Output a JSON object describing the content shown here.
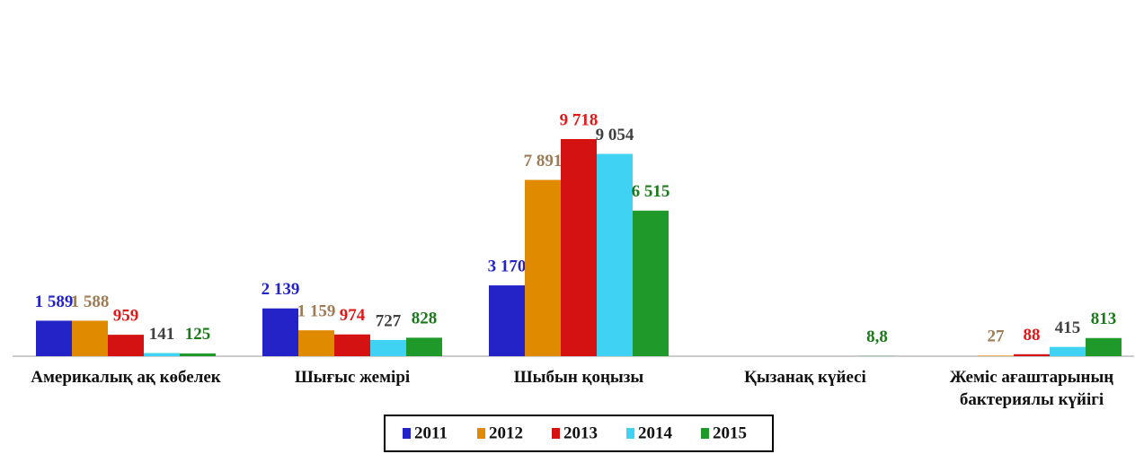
{
  "chart_data": {
    "type": "bar",
    "categories": [
      "Америкалық ақ көбелек",
      "Шығыс жемірі",
      "Шыбын қоңызы",
      "Қызанақ күйесі",
      "Жеміс ағаштарының бактериялы күйігі"
    ],
    "series": [
      {
        "name": "2011",
        "color": "#2323c8",
        "label_color": "#2323c8",
        "values": [
          1589,
          2139,
          3170,
          null,
          null
        ],
        "value_labels": [
          "1 589",
          "2 139",
          "3 170",
          null,
          null
        ]
      },
      {
        "name": "2012",
        "color": "#e08a00",
        "label_color": "#9c7b55",
        "values": [
          1588,
          1159,
          7891,
          null,
          27
        ],
        "value_labels": [
          "1 588",
          "1 159",
          "7 891",
          null,
          "27"
        ]
      },
      {
        "name": "2013",
        "color": "#d41212",
        "label_color": "#e01818",
        "values": [
          959,
          974,
          9718,
          null,
          88
        ],
        "value_labels": [
          "959",
          "974",
          "9 718",
          null,
          "88"
        ]
      },
      {
        "name": "2014",
        "color": "#3fd2f2",
        "label_color": "#404040",
        "values": [
          141,
          727,
          9054,
          null,
          415
        ],
        "value_labels": [
          "141",
          "727",
          "9 054",
          null,
          "415"
        ]
      },
      {
        "name": "2015",
        "color": "#1f9a2a",
        "label_color": "#1a7a1a",
        "values": [
          125,
          828,
          6515,
          8.8,
          813
        ],
        "value_labels": [
          "125",
          "828",
          "6 515",
          "8,8",
          "813"
        ]
      }
    ]
  }
}
